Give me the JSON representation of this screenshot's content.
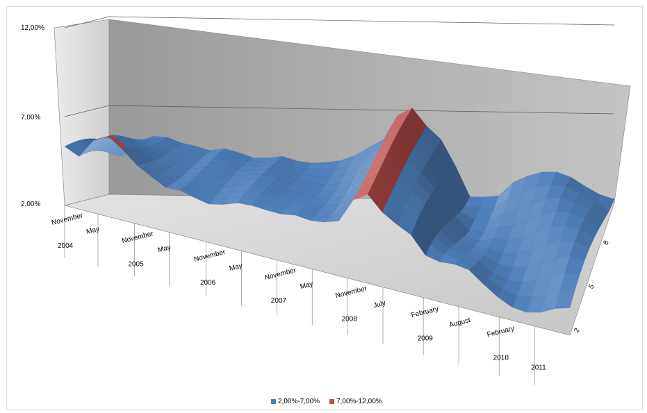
{
  "chart_data": {
    "type": "surface",
    "title": "",
    "z_ticks": [
      "12,00%",
      "7,00%",
      "2,00%"
    ],
    "zlim": [
      2,
      12
    ],
    "x_labels": [
      {
        "text": "November",
        "year": "2004"
      },
      {
        "text": "May",
        "year": ""
      },
      {
        "text": "November",
        "year": "2005"
      },
      {
        "text": "May",
        "year": ""
      },
      {
        "text": "November",
        "year": "2006"
      },
      {
        "text": "May",
        "year": ""
      },
      {
        "text": "November",
        "year": "2007"
      },
      {
        "text": "May",
        "year": ""
      },
      {
        "text": "November",
        "year": "2008"
      },
      {
        "text": "July",
        "year": ""
      },
      {
        "text": "February",
        "year": "2009"
      },
      {
        "text": "August",
        "year": ""
      },
      {
        "text": "February",
        "year": "2010"
      },
      {
        "text": "",
        "year": "2011"
      }
    ],
    "y_ticks": [
      "2",
      "5",
      "8"
    ],
    "profile": [
      5.2,
      4.6,
      5.4,
      5.9,
      5.6,
      5.1,
      4.8,
      4.5,
      4.6,
      4.4,
      4.2,
      4.3,
      4.5,
      4.4,
      4.3,
      4.3,
      4.4,
      4.5,
      4.8,
      5.2,
      6.6,
      7.1,
      6.2,
      5.6,
      4.7,
      3.3,
      3.0,
      3.2,
      3.5,
      3.4,
      3.3,
      3.2,
      3.1,
      3.0,
      3.0,
      2.9
    ],
    "amplitude": [
      0.4,
      0.6,
      0.8,
      0.7,
      0.5,
      0.4,
      0.4,
      0.3,
      0.3,
      0.3,
      0.3,
      0.3,
      0.3,
      0.4,
      0.4,
      0.4,
      0.6,
      0.6,
      0.7,
      0.5,
      0.4,
      0.4,
      0.3,
      0.4,
      1.0,
      1.3,
      1.4,
      1.5,
      1.5,
      1.5,
      1.5,
      1.6,
      1.6,
      1.5,
      1.4,
      1.2
    ],
    "series": [
      {
        "name": "2,00%-7,00%",
        "color": "#4f81bd"
      },
      {
        "name": "7,00%-12,00%",
        "color": "#c0504d"
      }
    ]
  }
}
